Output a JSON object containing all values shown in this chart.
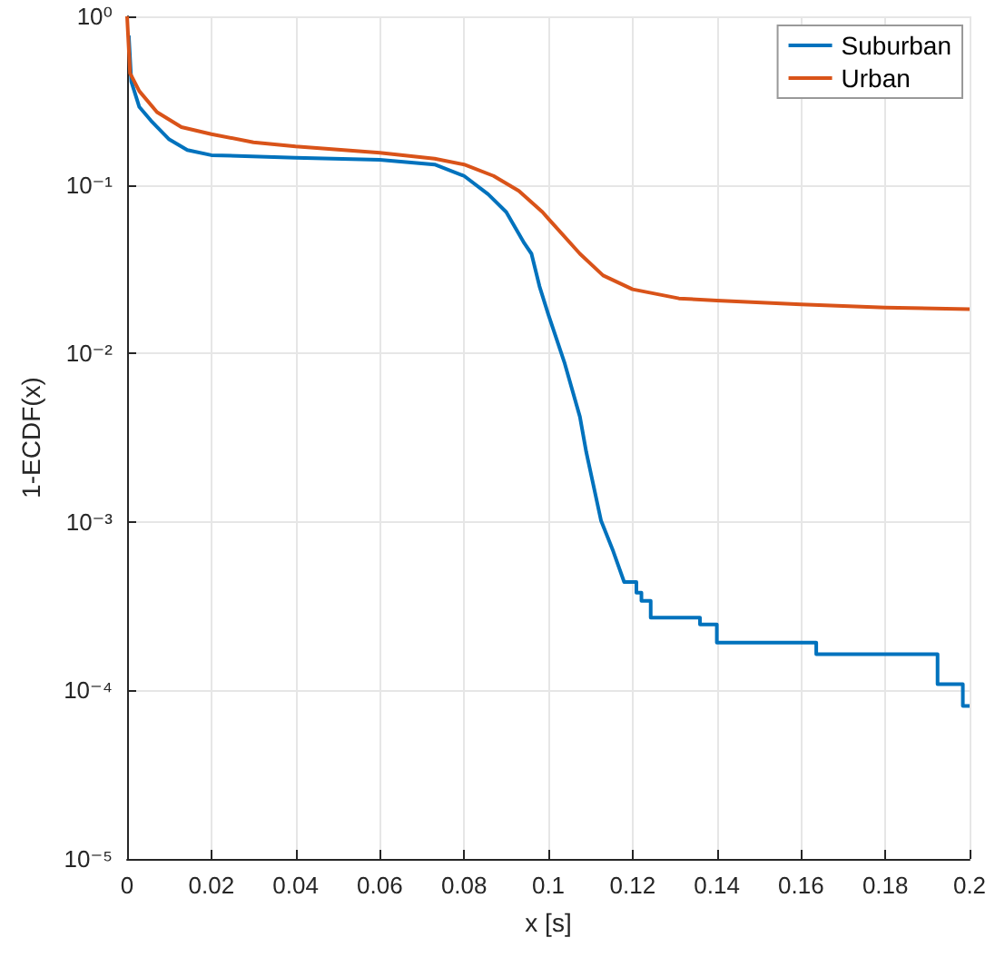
{
  "chart_data": {
    "type": "line",
    "xlabel": "x [s]",
    "ylabel": "1-ECDF(x)",
    "log": "y",
    "grid": true,
    "legend": "top right",
    "line_style": "solid",
    "marker": "none",
    "xlim": [
      0,
      0.2
    ],
    "xticks": [
      0,
      0.02,
      0.04,
      0.06,
      0.08,
      0.1,
      0.12,
      0.14,
      0.16,
      0.18,
      0.2
    ],
    "ylim": [
      1e-05,
      1
    ],
    "yticks": [
      {
        "value": 1e-05,
        "label": "10⁻⁵"
      },
      {
        "value": 0.0001,
        "label": "10⁻⁴"
      },
      {
        "value": 0.001,
        "label": "10⁻³"
      },
      {
        "value": 0.01,
        "label": "10⁻²"
      },
      {
        "value": 0.1,
        "label": "10⁻¹"
      },
      {
        "value": 1,
        "label": "10⁰"
      }
    ],
    "series": [
      {
        "name": "Suburban",
        "color": "#0072bd",
        "x": [
          0.0004,
          0.001,
          0.0029,
          0.0057,
          0.01,
          0.0143,
          0.02,
          0.04,
          0.06,
          0.073,
          0.08,
          0.0857,
          0.09,
          0.0943,
          0.096,
          0.0979,
          0.1,
          0.1039,
          0.1075,
          0.109,
          0.1125,
          0.1154,
          0.118,
          0.1209,
          0.1209,
          0.1221,
          0.1221,
          0.1243,
          0.1243,
          0.1261,
          0.1261,
          0.136,
          0.136,
          0.14,
          0.14,
          0.1636,
          0.1636,
          0.1924,
          0.1924,
          0.1984,
          0.1984,
          0.2
        ],
        "values": [
          0.77,
          0.41,
          0.29,
          0.24,
          0.186,
          0.161,
          0.15,
          0.145,
          0.141,
          0.132,
          0.113,
          0.088,
          0.069,
          0.045,
          0.039,
          0.025,
          0.017,
          0.0087,
          0.0042,
          0.0026,
          0.00102,
          0.00067,
          0.00044,
          0.00044,
          0.00038,
          0.00038,
          0.00034,
          0.00034,
          0.00027,
          0.00027,
          0.00027,
          0.00027,
          0.000246,
          0.000246,
          0.000192,
          0.000192,
          0.000164,
          0.000164,
          0.000109,
          0.000109,
          8.1e-05,
          8.1e-05
        ]
      },
      {
        "name": "Urban",
        "color": "#d95319",
        "x": [
          0,
          0.0007,
          0.0029,
          0.0071,
          0.0129,
          0.02,
          0.03,
          0.04,
          0.06,
          0.073,
          0.08,
          0.087,
          0.093,
          0.0986,
          0.1,
          0.1075,
          0.113,
          0.12,
          0.131,
          0.14,
          0.16,
          0.18,
          0.2
        ],
        "values": [
          1,
          0.46,
          0.36,
          0.27,
          0.22,
          0.2,
          0.179,
          0.169,
          0.155,
          0.143,
          0.132,
          0.113,
          0.092,
          0.069,
          0.063,
          0.039,
          0.029,
          0.024,
          0.0212,
          0.0206,
          0.0195,
          0.0187,
          0.0183
        ]
      }
    ]
  }
}
